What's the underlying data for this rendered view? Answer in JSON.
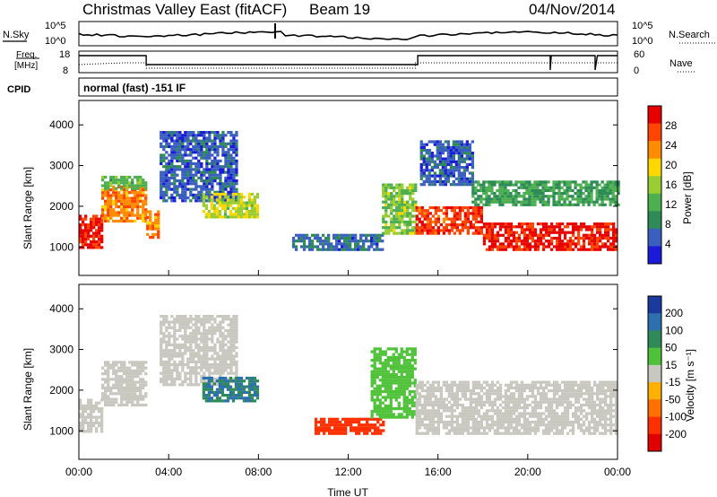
{
  "title": {
    "station": "Christmas Valley East (fitACF)",
    "beam": "Beam 19",
    "date": "04/Nov/2014"
  },
  "noise_panel": {
    "left_label": "N.Sky",
    "left_ticks": [
      "10^5",
      "10^0"
    ],
    "right_label": "N.Search",
    "right_ticks": [
      "10^5",
      "10^0"
    ]
  },
  "freq_panel": {
    "left_label_1": "Freq.",
    "left_label_2": "[MHz]",
    "left_ticks": [
      "18",
      "8"
    ],
    "right_label": "Nave",
    "right_ticks": [
      "60",
      "0"
    ]
  },
  "cpid": {
    "label": "CPID",
    "value": "normal (fast) -151 IF"
  },
  "colors": {
    "power": [
      "#1a1ad8",
      "#3a5fbf",
      "#2e8b57",
      "#4caf50",
      "#9acd32",
      "#ffd700",
      "#ff8c00",
      "#ff4500",
      "#e60000"
    ],
    "velocity": [
      "#1a3a9e",
      "#2e6fb0",
      "#2e8b57",
      "#4fc23a",
      "#c8c8c0",
      "#ffb000",
      "#ff7000",
      "#ff3000",
      "#e00000"
    ]
  },
  "chart_data": [
    {
      "type": "heatmap",
      "name": "Power",
      "xlabel": "",
      "ylabel": "Slant Range [km]",
      "x_ticks": [
        "00:00",
        "04:00",
        "08:00",
        "12:00",
        "16:00",
        "20:00",
        "00:00"
      ],
      "y_ticks": [
        1000,
        2000,
        3000,
        4000
      ],
      "xlim": [
        0,
        24
      ],
      "ylim": [
        300,
        4600
      ],
      "colorbar_label": "Power [dB]",
      "colorbar_ticks": [
        4,
        8,
        12,
        16,
        20,
        24,
        28
      ],
      "colorbar_range": [
        0,
        30
      ],
      "features": [
        {
          "t0": 0.0,
          "t1": 1.0,
          "r0": 950,
          "r1": 1750,
          "value": 28
        },
        {
          "t0": 1.0,
          "t1": 3.0,
          "r0": 1600,
          "r1": 2500,
          "value": 22
        },
        {
          "t0": 1.0,
          "t1": 3.0,
          "r0": 2400,
          "r1": 2700,
          "value": 12
        },
        {
          "t0": 3.0,
          "t1": 3.6,
          "r0": 1200,
          "r1": 1900,
          "value": 22
        },
        {
          "t0": 3.6,
          "t1": 7.0,
          "r0": 2100,
          "r1": 3800,
          "value": 5
        },
        {
          "t0": 5.5,
          "t1": 8.0,
          "r0": 1700,
          "r1": 2300,
          "value": 16
        },
        {
          "t0": 9.5,
          "t1": 13.5,
          "r0": 900,
          "r1": 1300,
          "value": 6
        },
        {
          "t0": 13.5,
          "t1": 15.0,
          "r0": 1300,
          "r1": 2500,
          "value": 14
        },
        {
          "t0": 15.0,
          "t1": 18.0,
          "r0": 1300,
          "r1": 2000,
          "value": 26
        },
        {
          "t0": 15.2,
          "t1": 17.5,
          "r0": 2500,
          "r1": 3600,
          "value": 5
        },
        {
          "t0": 18.0,
          "t1": 24.0,
          "r0": 900,
          "r1": 1600,
          "value": 28
        },
        {
          "t0": 17.5,
          "t1": 24.0,
          "r0": 2000,
          "r1": 2600,
          "value": 10
        }
      ]
    },
    {
      "type": "heatmap",
      "name": "Velocity",
      "xlabel": "Time UT",
      "ylabel": "Slant Range [km]",
      "x_ticks": [
        "00:00",
        "04:00",
        "08:00",
        "12:00",
        "16:00",
        "20:00",
        "00:00"
      ],
      "y_ticks": [
        1000,
        2000,
        3000,
        4000
      ],
      "xlim": [
        0,
        24
      ],
      "ylim": [
        300,
        4600
      ],
      "colorbar_label": "Velocity [m s⁻¹]",
      "colorbar_ticks": [
        "-200",
        "-100",
        "-50",
        "-15",
        "15",
        "50",
        "100",
        "200"
      ],
      "features": [
        {
          "t0": 0.0,
          "t1": 1.0,
          "r0": 950,
          "r1": 1750,
          "value": 0
        },
        {
          "t0": 1.0,
          "t1": 3.0,
          "r0": 1600,
          "r1": 2700,
          "value": 0
        },
        {
          "t0": 3.6,
          "t1": 7.0,
          "r0": 2100,
          "r1": 3800,
          "value": 0
        },
        {
          "t0": 5.5,
          "t1": 8.0,
          "r0": 1700,
          "r1": 2300,
          "value": 100
        },
        {
          "t0": 10.5,
          "t1": 13.5,
          "r0": 900,
          "r1": 1300,
          "value": -150
        },
        {
          "t0": 13.0,
          "t1": 15.0,
          "r0": 1300,
          "r1": 3000,
          "value": 40
        },
        {
          "t0": 15.0,
          "t1": 24.0,
          "r0": 900,
          "r1": 2200,
          "value": 0
        }
      ]
    }
  ]
}
